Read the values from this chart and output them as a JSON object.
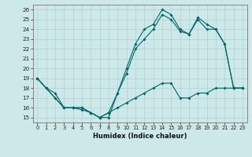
{
  "xlabel": "Humidex (Indice chaleur)",
  "xlim": [
    -0.5,
    23.5
  ],
  "ylim": [
    14.5,
    26.5
  ],
  "xticks": [
    0,
    1,
    2,
    3,
    4,
    5,
    6,
    7,
    8,
    9,
    10,
    11,
    12,
    13,
    14,
    15,
    16,
    17,
    18,
    19,
    20,
    21,
    22,
    23
  ],
  "yticks": [
    15,
    16,
    17,
    18,
    19,
    20,
    21,
    22,
    23,
    24,
    25,
    26
  ],
  "bg_color": "#cce8e8",
  "grid_color": "#b0d0d0",
  "line_color": "#006666",
  "curve1_x": [
    0,
    1,
    2,
    3,
    4,
    5,
    6,
    7,
    8,
    9,
    10,
    11,
    12,
    13,
    14,
    15,
    16,
    17,
    18,
    19,
    20,
    21,
    22,
    23
  ],
  "curve1_y": [
    19,
    18,
    17,
    16,
    16,
    16,
    15.5,
    15,
    15.5,
    17.5,
    20,
    22.5,
    24,
    24.5,
    26,
    25.5,
    24,
    23.5,
    25,
    24,
    24,
    22.5,
    18,
    18
  ],
  "curve2_x": [
    0,
    1,
    2,
    3,
    4,
    5,
    6,
    7,
    8,
    9,
    10,
    11,
    12,
    13,
    14,
    15,
    16,
    17,
    18,
    19,
    20,
    21,
    22,
    23
  ],
  "curve2_y": [
    19,
    18,
    17.5,
    16,
    16,
    16,
    15.5,
    15,
    15,
    17.5,
    19.5,
    22,
    23,
    24,
    25.5,
    25,
    23.8,
    23.5,
    25.2,
    24.5,
    24,
    22.5,
    18,
    18
  ],
  "curve3_x": [
    0,
    1,
    2,
    3,
    4,
    5,
    6,
    7,
    8,
    9,
    10,
    11,
    12,
    13,
    14,
    15,
    16,
    17,
    18,
    19,
    20,
    21,
    22,
    23
  ],
  "curve3_y": [
    19,
    18,
    17,
    16,
    16,
    15.8,
    15.5,
    15,
    15.5,
    16,
    16.5,
    17,
    17.5,
    18,
    18.5,
    18.5,
    17,
    17,
    17.5,
    17.5,
    18,
    18,
    18,
    18
  ]
}
